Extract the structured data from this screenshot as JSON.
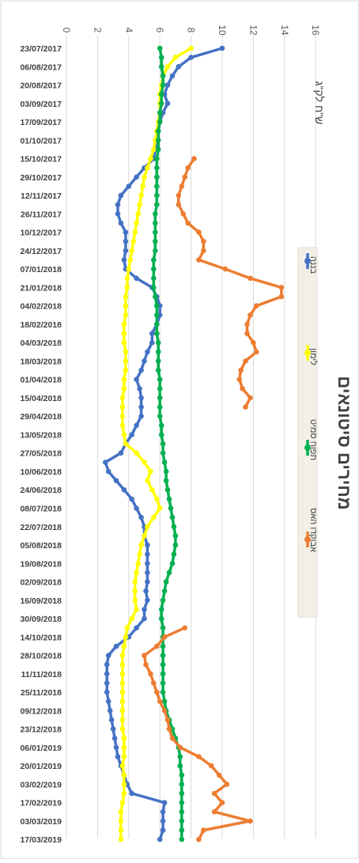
{
  "chart_data": {
    "type": "line",
    "title": "מחירים סיטונאים",
    "subtitle": "ש\"ח לק\"ג",
    "ylim": [
      0,
      16
    ],
    "y_ticks": [
      0,
      2,
      4,
      6,
      8,
      10,
      12,
      14,
      16
    ],
    "grid": true,
    "legend_position": "right",
    "orientation": "rotated-90-clockwise",
    "categories": [
      "23/07/2017",
      "30/07/2017",
      "06/08/2017",
      "13/08/2017",
      "20/08/2017",
      "27/08/2017",
      "03/09/2017",
      "10/09/2017",
      "17/09/2017",
      "24/09/2017",
      "01/10/2017",
      "08/10/2017",
      "15/10/2017",
      "22/10/2017",
      "29/10/2017",
      "05/11/2017",
      "12/11/2017",
      "19/11/2017",
      "26/11/2017",
      "03/12/2017",
      "10/12/2017",
      "17/12/2017",
      "24/12/2017",
      "31/12/2017",
      "07/01/2018",
      "14/01/2018",
      "21/01/2018",
      "28/01/2018",
      "04/02/2018",
      "11/02/2018",
      "18/02/2018",
      "25/02/2018",
      "04/03/2018",
      "11/03/2018",
      "18/03/2018",
      "25/03/2018",
      "01/04/2018",
      "08/04/2018",
      "15/04/2018",
      "22/04/2018",
      "29/04/2018",
      "06/05/2018",
      "13/05/2018",
      "20/05/2018",
      "27/05/2018",
      "03/06/2018",
      "10/06/2018",
      "17/06/2018",
      "24/06/2018",
      "01/07/2018",
      "08/07/2018",
      "15/07/2018",
      "22/07/2018",
      "29/07/2018",
      "05/08/2018",
      "12/08/2018",
      "19/08/2018",
      "26/08/2018",
      "02/09/2018",
      "09/09/2018",
      "16/09/2018",
      "23/09/2018",
      "30/09/2018",
      "07/10/2018",
      "14/10/2018",
      "21/10/2018",
      "28/10/2018",
      "04/11/2018",
      "11/11/2018",
      "18/11/2018",
      "25/11/2018",
      "02/12/2018",
      "09/12/2018",
      "16/12/2018",
      "23/12/2018",
      "30/12/2018",
      "06/01/2019",
      "13/01/2019",
      "20/01/2019",
      "27/01/2019",
      "03/02/2019",
      "10/02/2019",
      "17/02/2019",
      "24/02/2019",
      "03/03/2019",
      "10/03/2019",
      "17/03/2019"
    ],
    "tick_labels": [
      "23/07/2017",
      "06/08/2017",
      "20/08/2017",
      "03/09/2017",
      "17/09/2017",
      "01/10/2017",
      "15/10/2017",
      "29/10/2017",
      "12/11/2017",
      "26/11/2017",
      "10/12/2017",
      "24/12/2017",
      "07/01/2018",
      "21/01/2018",
      "04/02/2018",
      "18/02/2018",
      "04/03/2018",
      "18/03/2018",
      "01/04/2018",
      "15/04/2018",
      "29/04/2018",
      "13/05/2018",
      "27/05/2018",
      "10/06/2018",
      "24/06/2018",
      "08/07/2018",
      "22/07/2018",
      "05/08/2018",
      "19/08/2018",
      "02/09/2018",
      "16/09/2018",
      "30/09/2018",
      "14/10/2018",
      "28/10/2018",
      "11/11/2018",
      "25/11/2018",
      "09/12/2018",
      "23/12/2018",
      "06/01/2019",
      "20/01/2019",
      "03/02/2019",
      "17/02/2019",
      "03/03/2019",
      "17/03/2019"
    ],
    "series": [
      {
        "name": "בננה",
        "color": "#4472C4",
        "values": [
          10,
          8,
          7.2,
          6.8,
          6.5,
          6.3,
          6.5,
          6.2,
          6,
          5.9,
          5.8,
          5.7,
          5.6,
          5,
          4.5,
          4,
          3.5,
          3.3,
          3.3,
          3.5,
          3.8,
          3.8,
          3.8,
          3.7,
          3.8,
          4.5,
          5.5,
          5.8,
          6,
          6,
          5.8,
          5.5,
          5.5,
          5.2,
          5,
          4.8,
          4.5,
          4.7,
          4.8,
          4.8,
          4.8,
          4.5,
          4.2,
          3.8,
          3.5,
          2.5,
          2.7,
          3.2,
          3.7,
          4.2,
          4.5,
          4.8,
          5,
          5,
          5.2,
          5.2,
          5.2,
          5.2,
          5.2,
          5.1,
          5.2,
          5,
          5,
          4.5,
          4,
          3.2,
          2.7,
          2.6,
          2.6,
          2.6,
          2.6,
          2.7,
          2.8,
          2.9,
          3,
          3.1,
          3.2,
          3.3,
          3.5,
          3.7,
          3.9,
          4.2,
          6.3,
          6.2,
          6.2,
          6.2,
          6
        ]
      },
      {
        "name": "לימון",
        "color": "#FFFF00",
        "values": [
          8,
          7,
          6.5,
          6.2,
          6.1,
          6,
          6,
          6,
          5.9,
          5.8,
          5.7,
          5.6,
          5.4,
          5.2,
          5,
          4.9,
          4.8,
          4.7,
          4.6,
          4.5,
          4.4,
          4.3,
          4.2,
          4.1,
          4,
          3.9,
          3.9,
          3.8,
          3.8,
          3.8,
          3.7,
          3.7,
          3.7,
          3.8,
          3.8,
          3.8,
          3.7,
          3.7,
          3.6,
          3.6,
          3.6,
          3.6,
          3.7,
          3.8,
          4.5,
          5,
          5.4,
          5.2,
          5.5,
          5.8,
          6,
          5.6,
          5.2,
          5,
          4.8,
          4.7,
          4.6,
          4.5,
          4.4,
          4.4,
          4.4,
          4.5,
          4.2,
          3.9,
          3.8,
          3.7,
          3.6,
          3.6,
          3.6,
          3.6,
          3.6,
          3.6,
          3.6,
          3.6,
          3.6,
          3.7,
          3.7,
          3.7,
          3.6,
          3.7,
          3.7,
          3.7,
          3.6,
          3.5,
          3.5,
          3.5,
          3.5
        ]
      },
      {
        "name": "תפוח סמיט",
        "color": "#00B050",
        "values": [
          6,
          6.1,
          6.1,
          6.2,
          6.2,
          6.1,
          6.1,
          6,
          6,
          5.9,
          5.9,
          5.9,
          5.8,
          5.8,
          5.8,
          5.8,
          5.8,
          5.8,
          5.7,
          5.7,
          5.7,
          5.7,
          5.7,
          5.6,
          5.6,
          5.6,
          5.6,
          5.7,
          5.8,
          5.8,
          5.8,
          5.8,
          5.9,
          5.9,
          5.9,
          5.9,
          6,
          6,
          6,
          6,
          6,
          6.1,
          6.1,
          6.2,
          6.2,
          6.3,
          6.4,
          6.4,
          6.5,
          6.6,
          6.7,
          6.8,
          6.9,
          7,
          7,
          6.9,
          6.8,
          6.6,
          6.4,
          6.3,
          6.2,
          6.1,
          6.1,
          6.2,
          6.2,
          6.2,
          6.2,
          6.2,
          6.2,
          6.2,
          6.2,
          6.3,
          6.4,
          6.6,
          6.8,
          7,
          7.2,
          7.3,
          7.3,
          7.4,
          7.4,
          7.4,
          7.4,
          7.4,
          7.4,
          7.4,
          7.4
        ]
      },
      {
        "name": "אבוקדו האס",
        "color": "#ED7D31",
        "values": [
          null,
          null,
          null,
          null,
          null,
          null,
          null,
          null,
          null,
          null,
          null,
          null,
          8.2,
          7.8,
          7.6,
          7.4,
          7.2,
          7.2,
          7.5,
          7.8,
          8.5,
          8.8,
          8.8,
          8.5,
          10.2,
          11.8,
          13.8,
          13.8,
          12.2,
          11.8,
          11.6,
          11.6,
          12.0,
          12.2,
          11.5,
          11.2,
          11.1,
          11.3,
          11.8,
          11.5,
          null,
          null,
          null,
          null,
          null,
          null,
          null,
          null,
          null,
          null,
          null,
          null,
          null,
          null,
          null,
          null,
          null,
          null,
          null,
          null,
          null,
          null,
          null,
          7.6,
          6.3,
          5.8,
          5,
          5.1,
          5.4,
          5.6,
          5.8,
          6,
          6.3,
          6.5,
          6.6,
          6.8,
          7.3,
          8.5,
          9.3,
          9.8,
          10.3,
          9.5,
          10,
          9.5,
          11.8,
          8.8,
          8.5
        ]
      }
    ]
  }
}
